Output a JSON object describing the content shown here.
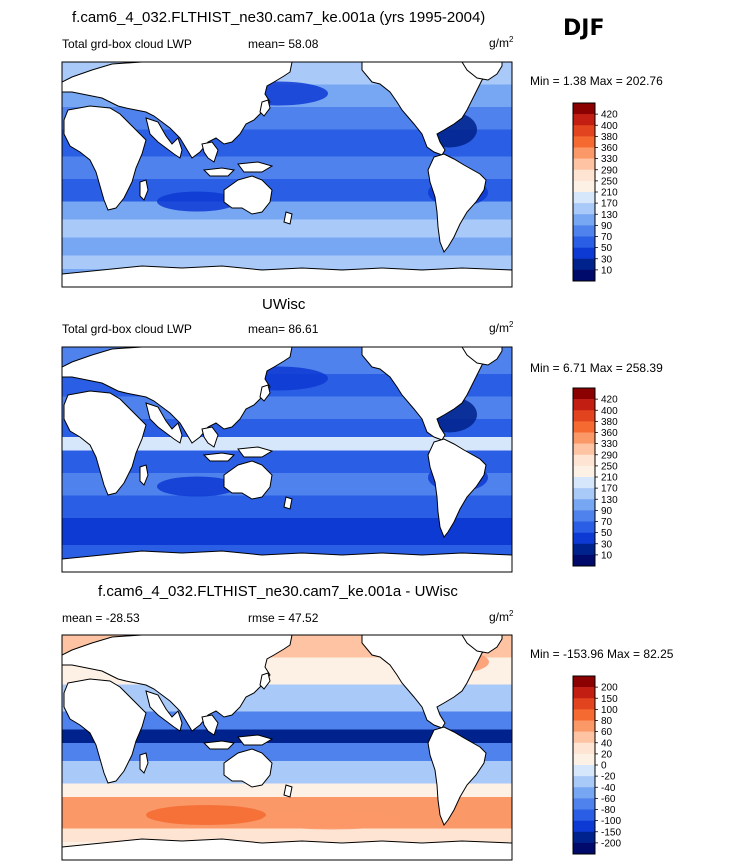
{
  "figure": {
    "season": "DJF"
  },
  "panels": [
    {
      "title": "f.cam6_4_032.FLTHIST_ne30.cam7_ke.001a (yrs 1995-2004)",
      "left_label": "Total grd-box cloud LWP",
      "center_label": "mean=  58.08",
      "units_base": "g/m",
      "units_exp": "2",
      "minmax": "Min =   1.38 Max = 202.76",
      "colorbar": {
        "labels": [
          "420",
          "400",
          "380",
          "360",
          "330",
          "290",
          "250",
          "210",
          "170",
          "130",
          "90",
          "70",
          "50",
          "30",
          "10"
        ],
        "colors": [
          "#8b0000",
          "#c31e12",
          "#e34420",
          "#f46a30",
          "#fb9868",
          "#fdc3a2",
          "#fee4d2",
          "#fdf1e6",
          "#d7e7fb",
          "#a9c9f8",
          "#77a6f2",
          "#4f82ec",
          "#2a5ee4",
          "#0d3ad3",
          "#00228c",
          "#000a6b"
        ]
      }
    },
    {
      "title": "UWisc",
      "left_label": "Total grd-box cloud LWP",
      "center_label": "mean=  86.61",
      "units_base": "g/m",
      "units_exp": "2",
      "minmax": "Min =   6.71 Max = 258.39",
      "colorbar": {
        "labels": [
          "420",
          "400",
          "380",
          "360",
          "330",
          "290",
          "250",
          "210",
          "170",
          "130",
          "90",
          "70",
          "50",
          "30",
          "10"
        ],
        "colors": [
          "#8b0000",
          "#c31e12",
          "#e34420",
          "#f46a30",
          "#fb9868",
          "#fdc3a2",
          "#fee4d2",
          "#fdf1e6",
          "#d7e7fb",
          "#a9c9f8",
          "#77a6f2",
          "#4f82ec",
          "#2a5ee4",
          "#0d3ad3",
          "#00228c",
          "#000a6b"
        ]
      }
    },
    {
      "title": "f.cam6_4_032.FLTHIST_ne30.cam7_ke.001a - UWisc",
      "left_label": "mean = -28.53",
      "center_label": "rmse =  47.52",
      "units_base": "g/m",
      "units_exp": "2",
      "minmax": "Min = -153.96 Max =  82.25",
      "colorbar": {
        "labels": [
          "200",
          "150",
          "100",
          "80",
          "60",
          "40",
          "20",
          "0",
          "-20",
          "-40",
          "-60",
          "-80",
          "-100",
          "-150",
          "-200"
        ],
        "colors": [
          "#8b0000",
          "#c31e12",
          "#e34420",
          "#f46a30",
          "#fb9868",
          "#fdc3a2",
          "#fee4d2",
          "#fdf1e6",
          "#d7e7fb",
          "#a9c9f8",
          "#77a6f2",
          "#4f82ec",
          "#2a5ee4",
          "#0d3ad3",
          "#00228c",
          "#000a6b"
        ]
      }
    }
  ],
  "chart_data": [
    {
      "type": "heatmap",
      "title": "f.cam6_4_032.FLTHIST_ne30.cam7_ke.001a (yrs 1995-2004)",
      "variable": "Total grd-box cloud LWP",
      "units": "g/m2",
      "mean": 58.08,
      "min": 1.38,
      "max": 202.76,
      "contour_levels": [
        10,
        30,
        50,
        70,
        90,
        130,
        170,
        210,
        250,
        290,
        330,
        360,
        380,
        400,
        420
      ]
    },
    {
      "type": "heatmap",
      "title": "UWisc",
      "variable": "Total grd-box cloud LWP",
      "units": "g/m2",
      "mean": 86.61,
      "min": 6.71,
      "max": 258.39,
      "contour_levels": [
        10,
        30,
        50,
        70,
        90,
        130,
        170,
        210,
        250,
        290,
        330,
        360,
        380,
        400,
        420
      ]
    },
    {
      "type": "heatmap",
      "title": "f.cam6_4_032.FLTHIST_ne30.cam7_ke.001a - UWisc",
      "units": "g/m2",
      "mean": -28.53,
      "rmse": 47.52,
      "min": -153.96,
      "max": 82.25,
      "contour_levels": [
        -200,
        -150,
        -100,
        -80,
        -60,
        -40,
        -20,
        0,
        20,
        40,
        60,
        80,
        100,
        150,
        200
      ]
    }
  ]
}
